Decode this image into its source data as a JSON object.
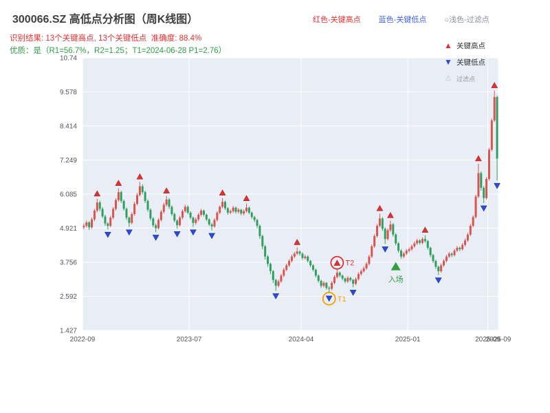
{
  "header": {
    "title": "300066.SZ 高低点分析图（周K线图）",
    "legend_high": "红色-关键高点",
    "legend_low": "蓝色-关键低点",
    "legend_filtered": "○浅色-过滤点",
    "result_line": "识别结果: 13个关键高点, 13个关键低点  准确度: 88.4%",
    "quality_line": "优质：是（R1=56.7%，R2=1.25；T1=2024-06-28 P1=2.76）"
  },
  "chart_legend": {
    "high": "关键高点",
    "low": "关键低点",
    "filtered": "过滤点"
  },
  "chart_data": {
    "type": "candlestick",
    "title": "300066.SZ 高低点分析图（周K线图）",
    "ylim": [
      1.427,
      10.74
    ],
    "y_ticks": [
      1.427,
      2.592,
      3.756,
      4.921,
      6.085,
      7.249,
      8.414,
      9.578,
      10.74
    ],
    "x_ticks": [
      {
        "label": "2022-09",
        "pos": 0
      },
      {
        "label": "2023-07",
        "pos": 40
      },
      {
        "label": "2024-04",
        "pos": 82
      },
      {
        "label": "2025-01",
        "pos": 122
      },
      {
        "label": "2025-09",
        "pos": 152
      },
      {
        "label": "2025-09",
        "pos": 156
      }
    ],
    "up_color": "#d9534f",
    "down_color": "#2f9e5e",
    "high_color": "#e03131",
    "low_color": "#2b4bd7",
    "plot_bg": "#e9eef6",
    "grid_color": "#ffffff",
    "candles": [
      [
        4.95,
        5.08,
        4.88,
        5.0
      ],
      [
        5.0,
        5.18,
        4.94,
        5.12
      ],
      [
        5.12,
        5.16,
        4.86,
        4.95
      ],
      [
        4.95,
        5.28,
        4.9,
        5.22
      ],
      [
        5.22,
        5.58,
        5.16,
        5.52
      ],
      [
        5.52,
        5.92,
        5.46,
        5.8
      ],
      [
        5.8,
        5.86,
        5.5,
        5.58
      ],
      [
        5.58,
        5.64,
        5.26,
        5.32
      ],
      [
        5.32,
        5.38,
        5.0,
        5.08
      ],
      [
        5.08,
        5.12,
        4.88,
        5.0
      ],
      [
        5.0,
        5.34,
        4.95,
        5.28
      ],
      [
        5.28,
        5.64,
        5.22,
        5.58
      ],
      [
        5.58,
        5.94,
        5.52,
        5.88
      ],
      [
        5.88,
        6.28,
        5.82,
        6.15
      ],
      [
        6.15,
        6.2,
        5.78,
        5.85
      ],
      [
        5.85,
        5.9,
        5.52,
        5.58
      ],
      [
        5.58,
        5.62,
        5.2,
        5.28
      ],
      [
        5.28,
        5.32,
        4.96,
        5.1
      ],
      [
        5.1,
        5.46,
        5.05,
        5.4
      ],
      [
        5.4,
        5.82,
        5.35,
        5.75
      ],
      [
        5.75,
        6.12,
        5.7,
        6.05
      ],
      [
        6.05,
        6.5,
        6.0,
        6.35
      ],
      [
        6.35,
        6.42,
        6.08,
        6.15
      ],
      [
        6.15,
        6.2,
        5.78,
        5.85
      ],
      [
        5.85,
        5.9,
        5.48,
        5.55
      ],
      [
        5.55,
        5.6,
        5.18,
        5.25
      ],
      [
        5.25,
        5.3,
        4.95,
        5.02
      ],
      [
        5.02,
        5.08,
        4.78,
        4.92
      ],
      [
        4.92,
        5.26,
        4.88,
        5.2
      ],
      [
        5.2,
        5.54,
        5.15,
        5.48
      ],
      [
        5.48,
        5.78,
        5.42,
        5.72
      ],
      [
        5.72,
        6.02,
        5.66,
        5.9
      ],
      [
        5.9,
        5.95,
        5.58,
        5.65
      ],
      [
        5.65,
        5.7,
        5.34,
        5.4
      ],
      [
        5.4,
        5.45,
        5.12,
        5.18
      ],
      [
        5.18,
        5.22,
        4.9,
        5.02
      ],
      [
        5.02,
        5.34,
        4.98,
        5.28
      ],
      [
        5.28,
        5.56,
        5.22,
        5.5
      ],
      [
        5.5,
        5.72,
        5.45,
        5.65
      ],
      [
        5.65,
        5.7,
        5.4,
        5.45
      ],
      [
        5.45,
        5.5,
        5.22,
        5.28
      ],
      [
        5.28,
        5.32,
        4.96,
        5.1
      ],
      [
        5.1,
        5.28,
        5.04,
        5.22
      ],
      [
        5.22,
        5.44,
        5.16,
        5.38
      ],
      [
        5.38,
        5.58,
        5.32,
        5.52
      ],
      [
        5.52,
        5.56,
        5.32,
        5.38
      ],
      [
        5.38,
        5.42,
        5.16,
        5.22
      ],
      [
        5.22,
        5.26,
        4.99,
        5.05
      ],
      [
        5.05,
        5.1,
        4.84,
        4.98
      ],
      [
        4.98,
        5.26,
        4.93,
        5.2
      ],
      [
        5.2,
        5.5,
        5.15,
        5.45
      ],
      [
        5.45,
        5.7,
        5.4,
        5.65
      ],
      [
        5.65,
        5.95,
        5.6,
        5.82
      ],
      [
        5.82,
        5.86,
        5.54,
        5.6
      ],
      [
        5.6,
        5.64,
        5.38,
        5.45
      ],
      [
        5.45,
        5.56,
        5.4,
        5.5
      ],
      [
        5.5,
        5.68,
        5.44,
        5.62
      ],
      [
        5.62,
        5.66,
        5.42,
        5.48
      ],
      [
        5.48,
        5.61,
        5.42,
        5.55
      ],
      [
        5.55,
        5.58,
        5.36,
        5.42
      ],
      [
        5.42,
        5.56,
        5.36,
        5.5
      ],
      [
        5.5,
        5.76,
        5.45,
        5.62
      ],
      [
        5.62,
        5.66,
        5.4,
        5.45
      ],
      [
        5.45,
        5.49,
        5.24,
        5.3
      ],
      [
        5.3,
        5.34,
        5.13,
        5.2
      ],
      [
        5.2,
        5.24,
        4.92,
        5.0
      ],
      [
        5.0,
        5.04,
        4.55,
        4.65
      ],
      [
        4.65,
        4.7,
        4.2,
        4.3
      ],
      [
        4.3,
        4.35,
        3.85,
        3.95
      ],
      [
        3.95,
        4.0,
        3.6,
        3.7
      ],
      [
        3.7,
        3.74,
        3.35,
        3.45
      ],
      [
        3.45,
        3.49,
        3.05,
        3.15
      ],
      [
        3.15,
        3.19,
        2.78,
        2.95
      ],
      [
        2.95,
        3.16,
        2.9,
        3.1
      ],
      [
        3.1,
        3.36,
        3.05,
        3.3
      ],
      [
        3.3,
        3.56,
        3.25,
        3.5
      ],
      [
        3.5,
        3.71,
        3.45,
        3.65
      ],
      [
        3.65,
        3.86,
        3.6,
        3.8
      ],
      [
        3.8,
        4.01,
        3.75,
        3.95
      ],
      [
        3.95,
        4.11,
        3.9,
        4.05
      ],
      [
        4.05,
        4.26,
        4.0,
        4.12
      ],
      [
        4.12,
        4.16,
        3.98,
        4.05
      ],
      [
        4.05,
        4.09,
        3.84,
        3.9
      ],
      [
        3.9,
        4.01,
        3.85,
        3.95
      ],
      [
        3.95,
        3.99,
        3.74,
        3.8
      ],
      [
        3.8,
        3.84,
        3.59,
        3.65
      ],
      [
        3.65,
        3.69,
        3.44,
        3.5
      ],
      [
        3.5,
        3.54,
        3.24,
        3.3
      ],
      [
        3.3,
        3.34,
        3.06,
        3.12
      ],
      [
        3.12,
        3.16,
        2.88,
        2.95
      ],
      [
        2.95,
        3.11,
        2.9,
        3.05
      ],
      [
        3.05,
        3.08,
        2.82,
        2.88
      ],
      [
        2.88,
        2.94,
        2.7,
        2.85
      ],
      [
        2.85,
        3.11,
        2.8,
        3.05
      ],
      [
        3.05,
        3.31,
        3.0,
        3.25
      ],
      [
        3.25,
        3.55,
        3.2,
        3.4
      ],
      [
        3.4,
        3.44,
        3.24,
        3.3
      ],
      [
        3.3,
        3.34,
        3.14,
        3.2
      ],
      [
        3.2,
        3.24,
        3.04,
        3.1
      ],
      [
        3.1,
        3.28,
        3.05,
        3.22
      ],
      [
        3.22,
        3.26,
        3.09,
        3.15
      ],
      [
        3.15,
        3.19,
        2.9,
        3.02
      ],
      [
        3.02,
        3.24,
        2.97,
        3.18
      ],
      [
        3.18,
        3.41,
        3.13,
        3.35
      ],
      [
        3.35,
        3.51,
        3.3,
        3.45
      ],
      [
        3.45,
        3.61,
        3.4,
        3.55
      ],
      [
        3.55,
        3.76,
        3.5,
        3.7
      ],
      [
        3.7,
        4.01,
        3.65,
        3.95
      ],
      [
        3.95,
        4.36,
        3.9,
        4.3
      ],
      [
        4.3,
        4.71,
        4.25,
        4.65
      ],
      [
        4.65,
        5.06,
        4.6,
        5.0
      ],
      [
        5.0,
        5.42,
        4.95,
        5.25
      ],
      [
        5.25,
        5.3,
        4.83,
        4.9
      ],
      [
        4.9,
        4.95,
        4.38,
        4.55
      ],
      [
        4.55,
        4.91,
        4.5,
        4.85
      ],
      [
        4.85,
        5.18,
        4.8,
        5.05
      ],
      [
        5.05,
        5.1,
        4.63,
        4.7
      ],
      [
        4.7,
        4.75,
        4.33,
        4.4
      ],
      [
        4.4,
        4.45,
        4.08,
        4.15
      ],
      [
        4.15,
        4.2,
        3.88,
        3.95
      ],
      [
        3.95,
        4.11,
        3.9,
        4.05
      ],
      [
        4.05,
        4.21,
        4.0,
        4.15
      ],
      [
        4.15,
        4.26,
        4.1,
        4.2
      ],
      [
        4.2,
        4.36,
        4.15,
        4.3
      ],
      [
        4.3,
        4.46,
        4.25,
        4.4
      ],
      [
        4.4,
        4.56,
        4.35,
        4.5
      ],
      [
        4.5,
        4.54,
        4.36,
        4.42
      ],
      [
        4.42,
        4.61,
        4.37,
        4.55
      ],
      [
        4.55,
        4.68,
        4.42,
        4.48
      ],
      [
        4.48,
        4.52,
        4.18,
        4.25
      ],
      [
        4.25,
        4.29,
        3.93,
        4.0
      ],
      [
        4.0,
        4.04,
        3.73,
        3.8
      ],
      [
        3.8,
        3.84,
        3.53,
        3.6
      ],
      [
        3.6,
        3.64,
        3.32,
        3.45
      ],
      [
        3.45,
        3.71,
        3.4,
        3.65
      ],
      [
        3.65,
        3.86,
        3.6,
        3.8
      ],
      [
        3.8,
        4.01,
        3.75,
        3.95
      ],
      [
        3.95,
        4.11,
        3.9,
        4.05
      ],
      [
        4.05,
        4.09,
        3.93,
        4.0
      ],
      [
        4.0,
        4.21,
        3.95,
        4.15
      ],
      [
        4.15,
        4.31,
        4.1,
        4.25
      ],
      [
        4.25,
        4.29,
        4.13,
        4.2
      ],
      [
        4.2,
        4.41,
        4.15,
        4.35
      ],
      [
        4.35,
        4.56,
        4.3,
        4.5
      ],
      [
        4.5,
        4.76,
        4.45,
        4.7
      ],
      [
        4.7,
        5.06,
        4.65,
        5.0
      ],
      [
        5.0,
        5.36,
        4.95,
        5.3
      ],
      [
        5.3,
        6.06,
        5.25,
        6.0
      ],
      [
        6.0,
        7.12,
        5.95,
        6.8
      ],
      [
        6.8,
        6.86,
        6.2,
        6.3
      ],
      [
        6.3,
        6.36,
        5.78,
        5.95
      ],
      [
        5.95,
        6.66,
        5.9,
        6.6
      ],
      [
        6.6,
        7.66,
        6.55,
        7.6
      ],
      [
        7.6,
        8.66,
        7.55,
        8.6
      ],
      [
        8.6,
        9.62,
        8.55,
        9.4
      ],
      [
        9.4,
        9.45,
        6.55,
        7.3
      ]
    ],
    "key_highs": [
      5,
      13,
      21,
      31,
      52,
      61,
      80,
      95,
      111,
      115,
      128,
      148,
      154
    ],
    "key_lows": [
      9,
      17,
      27,
      35,
      41,
      48,
      72,
      92,
      101,
      113,
      133,
      150,
      155
    ],
    "annotations": [
      {
        "kind": "ring",
        "index": 95,
        "anchor": "high",
        "color": "#e03131",
        "label": "T2"
      },
      {
        "kind": "ring",
        "index": 92,
        "anchor": "low",
        "color": "#f59f00",
        "label": "T1"
      },
      {
        "kind": "entry",
        "index": 117,
        "price": 3.6,
        "color": "#2f9e44",
        "label": "入场"
      }
    ],
    "stats": {
      "key_high_count": 13,
      "key_low_count": 13,
      "accuracy": "88.4%",
      "r1": "56.7%",
      "r2": "1.25",
      "t1_date": "2024-06-28",
      "p1": "2.76"
    }
  }
}
